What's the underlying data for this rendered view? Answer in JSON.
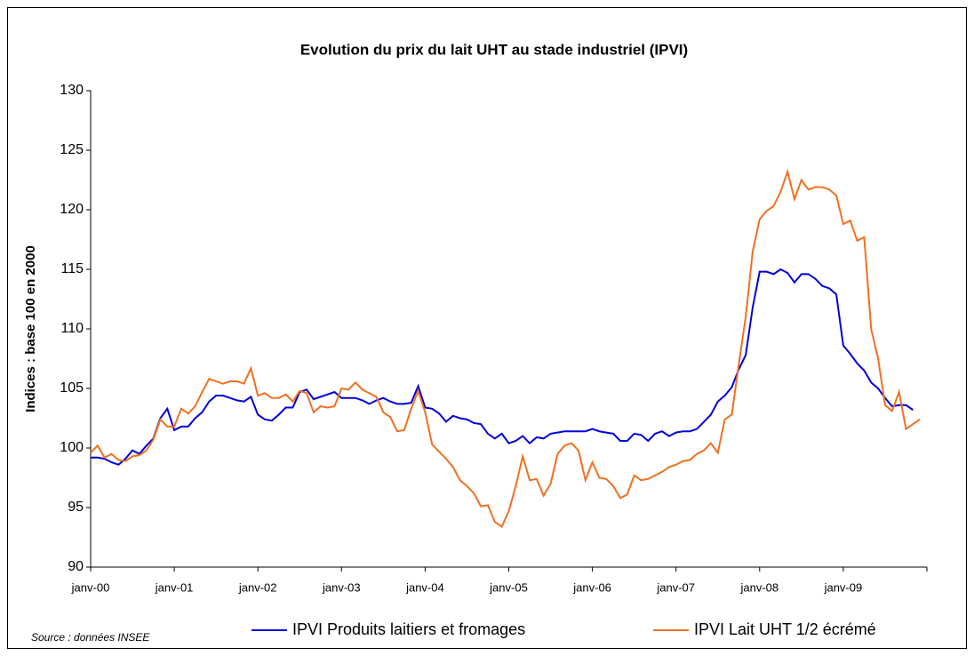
{
  "chart_data": {
    "type": "line",
    "title": "Evolution du prix du lait UHT au stade industriel (IPVI)",
    "ylabel": "Indices : base 100 en 2000",
    "source": "Source : données INSEE",
    "categories": [
      "janv-00",
      null,
      null,
      null,
      null,
      null,
      null,
      null,
      null,
      null,
      null,
      null,
      "janv-01",
      null,
      null,
      null,
      null,
      null,
      null,
      null,
      null,
      null,
      null,
      null,
      "janv-02",
      null,
      null,
      null,
      null,
      null,
      null,
      null,
      null,
      null,
      null,
      null,
      "janv-03",
      null,
      null,
      null,
      null,
      null,
      null,
      null,
      null,
      null,
      null,
      null,
      "janv-04",
      null,
      null,
      null,
      null,
      null,
      null,
      null,
      null,
      null,
      null,
      null,
      "janv-05",
      null,
      null,
      null,
      null,
      null,
      null,
      null,
      null,
      null,
      null,
      null,
      "janv-06",
      null,
      null,
      null,
      null,
      null,
      null,
      null,
      null,
      null,
      null,
      null,
      "janv-07",
      null,
      null,
      null,
      null,
      null,
      null,
      null,
      null,
      null,
      null,
      null,
      "janv-08",
      null,
      null,
      null,
      null,
      null,
      null,
      null,
      null,
      null,
      null,
      null,
      "janv-09",
      null,
      null,
      null,
      null,
      null,
      null,
      null,
      null,
      null,
      null,
      null
    ],
    "series": [
      {
        "name": "IPVI Produits laitiers et fromages",
        "color": "#0000dd",
        "values": [
          99.2,
          99.2,
          99.1,
          98.8,
          98.6,
          99.1,
          99.8,
          99.5,
          100.2,
          100.8,
          102.5,
          103.3,
          101.5,
          101.8,
          101.8,
          102.5,
          103.0,
          103.9,
          104.4,
          104.4,
          104.2,
          104.0,
          103.9,
          104.3,
          102.8,
          102.4,
          102.3,
          102.8,
          103.4,
          103.4,
          104.7,
          104.9,
          104.1,
          104.3,
          104.5,
          104.7,
          104.2,
          104.2,
          104.2,
          104.0,
          103.7,
          104.0,
          104.2,
          103.9,
          103.7,
          103.7,
          103.8,
          105.2,
          103.4,
          103.3,
          102.9,
          102.2,
          102.7,
          102.5,
          102.4,
          102.1,
          102.0,
          101.2,
          100.8,
          101.2,
          100.4,
          100.6,
          101.0,
          100.4,
          100.9,
          100.8,
          101.2,
          101.3,
          101.4,
          101.4,
          101.4,
          101.4,
          101.6,
          101.4,
          101.3,
          101.2,
          100.6,
          100.6,
          101.2,
          101.1,
          100.6,
          101.2,
          101.4,
          101.0,
          101.3,
          101.4,
          101.4,
          101.6,
          102.2,
          102.8,
          103.9,
          104.4,
          105.1,
          106.6,
          107.8,
          111.8,
          114.8,
          114.8,
          114.6,
          115.0,
          114.7,
          113.9,
          114.6,
          114.6,
          114.2,
          113.6,
          113.4,
          112.9,
          108.6,
          107.9,
          107.1,
          106.5,
          105.5,
          105.0,
          104.2,
          103.5,
          103.6,
          103.6,
          103.2,
          null
        ]
      },
      {
        "name": "IPVI Lait UHT 1/2 écrémé",
        "color": "#f07020",
        "values": [
          99.6,
          100.2,
          99.2,
          99.5,
          99.0,
          98.9,
          99.3,
          99.4,
          99.8,
          100.7,
          102.4,
          101.8,
          101.8,
          103.3,
          102.9,
          103.5,
          104.7,
          105.8,
          105.6,
          105.4,
          105.6,
          105.6,
          105.4,
          106.7,
          104.4,
          104.6,
          104.2,
          104.2,
          104.5,
          103.9,
          104.8,
          104.6,
          103.0,
          103.5,
          103.4,
          103.5,
          105.0,
          104.9,
          105.5,
          104.9,
          104.6,
          104.3,
          103.0,
          102.6,
          101.4,
          101.5,
          103.3,
          104.8,
          103.0,
          100.3,
          99.7,
          99.1,
          98.4,
          97.3,
          96.8,
          96.2,
          95.1,
          95.2,
          93.8,
          93.4,
          94.7,
          96.8,
          99.3,
          97.3,
          97.4,
          96.0,
          97.0,
          99.5,
          100.2,
          100.4,
          99.8,
          97.3,
          98.8,
          97.5,
          97.4,
          96.8,
          95.8,
          96.1,
          97.7,
          97.3,
          97.4,
          97.7,
          98.0,
          98.4,
          98.6,
          98.9,
          99.0,
          99.5,
          99.8,
          100.4,
          99.6,
          102.4,
          102.8,
          107.0,
          111.0,
          116.5,
          119.2,
          119.9,
          120.3,
          121.5,
          123.2,
          120.9,
          122.5,
          121.7,
          121.9,
          121.9,
          121.7,
          121.2,
          118.8,
          119.1,
          117.4,
          117.7,
          110.0,
          107.5,
          103.6,
          103.1,
          104.7,
          101.6,
          102.0,
          102.4
        ]
      }
    ],
    "ylim": [
      90,
      130
    ],
    "yticks": [
      90,
      95,
      100,
      105,
      110,
      115,
      120,
      125,
      130
    ],
    "grid": false,
    "legend": "bottom"
  }
}
